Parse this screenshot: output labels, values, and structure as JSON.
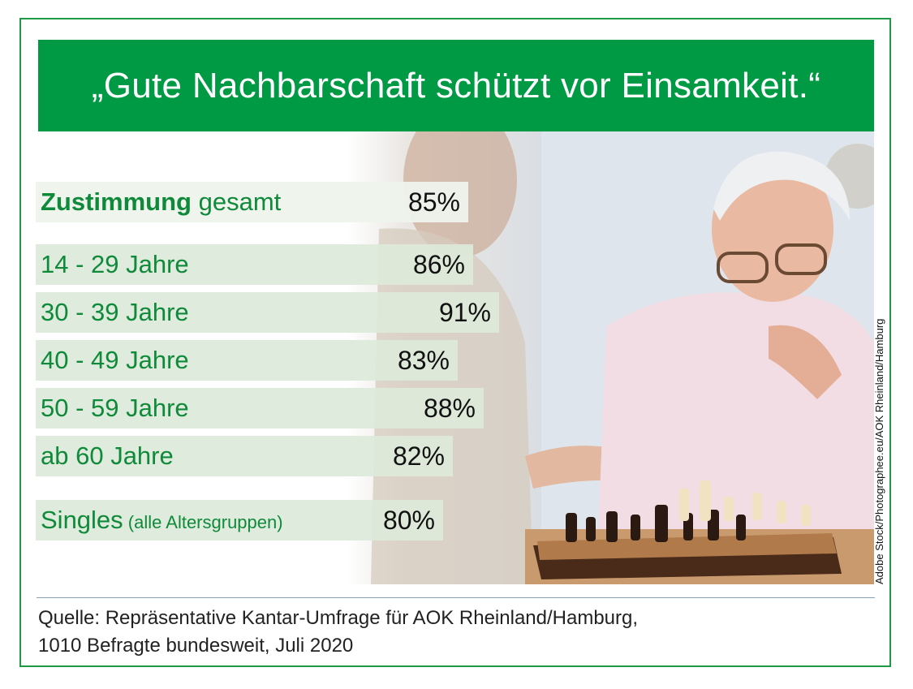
{
  "title": "„Gute Nachbarschaft schützt vor Einsamkeit.“",
  "photo_credit": "Adobe Stock/Photographee.eu/AOK Rheinland/Hamburg",
  "chart_data": {
    "type": "bar",
    "orientation": "horizontal",
    "title": "„Gute Nachbarschaft schützt vor Einsamkeit.“",
    "categories": [
      "Zustimmung gesamt",
      "14 - 29 Jahre",
      "30 - 39 Jahre",
      "40 - 49 Jahre",
      "50 - 59 Jahre",
      "ab 60 Jahre",
      "Singles (alle Altersgruppen)"
    ],
    "values": [
      85,
      86,
      91,
      83,
      88,
      82,
      80
    ],
    "value_labels": [
      "85%",
      "86%",
      "91%",
      "83%",
      "88%",
      "82%",
      "80%"
    ],
    "unit": "%",
    "rows": [
      {
        "label_strong": "Zustimmung",
        "label": " gesamt",
        "label_small": "",
        "value": 85,
        "value_label": "85%",
        "kind": "total"
      },
      {
        "label_strong": "",
        "label": "14 - 29 Jahre",
        "label_small": "",
        "value": 86,
        "value_label": "86%",
        "kind": "age"
      },
      {
        "label_strong": "",
        "label": "30 - 39 Jahre",
        "label_small": "",
        "value": 91,
        "value_label": "91%",
        "kind": "age"
      },
      {
        "label_strong": "",
        "label": "40 - 49 Jahre",
        "label_small": "",
        "value": 83,
        "value_label": "83%",
        "kind": "age"
      },
      {
        "label_strong": "",
        "label": "50 - 59 Jahre",
        "label_small": "",
        "value": 88,
        "value_label": "88%",
        "kind": "age"
      },
      {
        "label_strong": "",
        "label": "ab 60 Jahre",
        "label_small": "",
        "value": 82,
        "value_label": "82%",
        "kind": "age"
      },
      {
        "label_strong": "",
        "label": "Singles",
        "label_small": "(alle Altersgruppen)",
        "value": 80,
        "value_label": "80%",
        "kind": "singles"
      }
    ],
    "colors": {
      "label": "#0f8a3a",
      "bar": "#dde9d9",
      "banner": "#009a44"
    }
  },
  "source": {
    "line1": "Quelle: Repräsentative Kantar-Umfrage für AOK Rheinland/Hamburg,",
    "line2": "1010 Befragte bundesweit, Juli 2020"
  }
}
